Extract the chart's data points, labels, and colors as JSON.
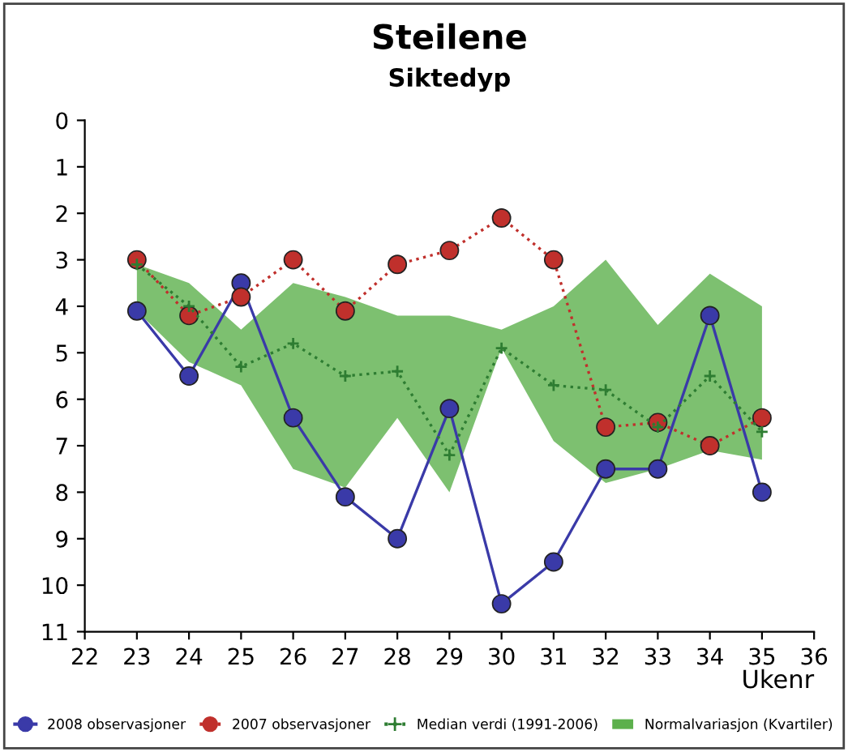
{
  "chart_data": {
    "type": "line",
    "title": "Steilene",
    "subtitle": "Siktedyp",
    "xlabel": "Ukenr",
    "x": [
      23,
      24,
      25,
      26,
      27,
      28,
      29,
      30,
      31,
      32,
      33,
      34,
      35
    ],
    "series": [
      {
        "name": "2008 observasjoner",
        "color": "#3a3aa8",
        "marker": "circle",
        "line_style": "solid",
        "values": [
          4.1,
          5.5,
          3.5,
          6.4,
          8.1,
          9.0,
          6.2,
          10.4,
          9.5,
          7.5,
          7.5,
          4.2,
          8.0
        ]
      },
      {
        "name": "2007 observasjoner",
        "color": "#c0302c",
        "marker": "circle",
        "line_style": "dotted",
        "values": [
          3.0,
          4.2,
          3.8,
          3.0,
          4.1,
          3.1,
          2.8,
          2.1,
          3.0,
          6.6,
          6.5,
          7.0,
          6.4
        ]
      },
      {
        "name": "Median verdi (1991-2006)",
        "color": "#2e7d32",
        "marker": "cross",
        "line_style": "dotted",
        "values": [
          3.1,
          4.0,
          5.3,
          4.8,
          5.5,
          5.4,
          7.2,
          4.9,
          5.7,
          5.8,
          6.6,
          5.5,
          6.7
        ]
      },
      {
        "type": "area",
        "name": "Normalvariasjon (Kvartiler)",
        "color": "#5cb04c",
        "values": [
          null,
          null,
          null,
          null,
          null,
          null,
          null,
          null,
          null,
          null,
          null,
          null,
          null
        ],
        "upper": [
          3.1,
          3.5,
          4.5,
          3.5,
          3.8,
          4.2,
          4.2,
          4.5,
          4.0,
          3.0,
          4.4,
          3.3,
          4.0
        ],
        "lower": [
          4.1,
          5.2,
          5.7,
          7.5,
          7.9,
          6.4,
          8.0,
          4.9,
          6.9,
          7.8,
          7.5,
          7.1,
          7.3
        ]
      }
    ],
    "xlim": [
      22,
      36
    ],
    "ylim": [
      11,
      0
    ],
    "xticks": [
      22,
      23,
      24,
      25,
      26,
      27,
      28,
      29,
      30,
      31,
      32,
      33,
      34,
      35,
      36
    ],
    "yticks": [
      0,
      1,
      2,
      3,
      4,
      5,
      6,
      7,
      8,
      9,
      10,
      11
    ],
    "grid": false,
    "legend": "bottom"
  }
}
